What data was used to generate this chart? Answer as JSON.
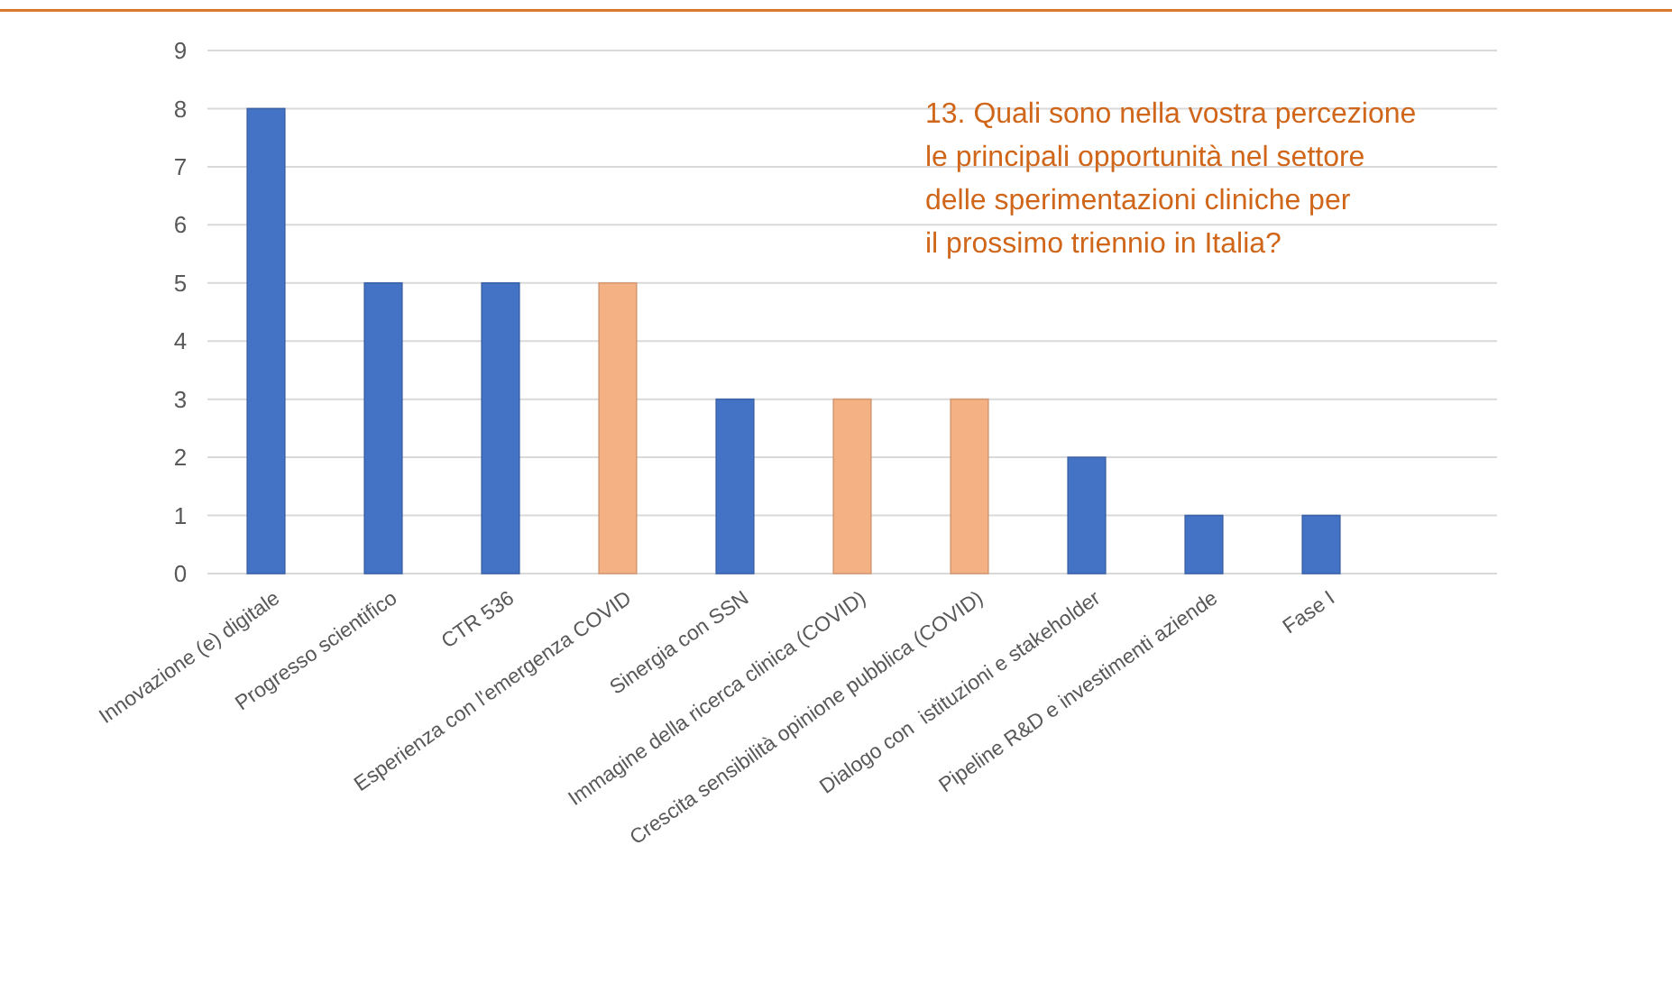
{
  "chart_data": {
    "type": "bar",
    "title": "13. Quali sono nella vostra percezione\nle principali opportunità nel settore\ndelle sperimentazioni cliniche per\nil prossimo triennio in Italia?",
    "categories": [
      "Innovazione (e) digitale",
      "Progresso scientifico",
      "CTR 536",
      "Esperienza con l'emergenza COVID",
      "Sinergia con SSN",
      "Immagine della ricerca clinica (COVID)",
      "Crescita sensibilità opinione pubblica (COVID)",
      "Dialogo con  istituzioni e stakeholder",
      "Pipeline R&D e investimenti aziende",
      "Fase I"
    ],
    "values": [
      8,
      5,
      5,
      5,
      3,
      3,
      3,
      2,
      1,
      1
    ],
    "colors": [
      "#4472c4",
      "#4472c4",
      "#4472c4",
      "#f4b183",
      "#4472c4",
      "#f4b183",
      "#f4b183",
      "#4472c4",
      "#4472c4",
      "#4472c4"
    ],
    "ylim": [
      0,
      9
    ],
    "yticks": [
      0,
      1,
      2,
      3,
      4,
      5,
      6,
      7,
      8,
      9
    ],
    "grid": "y"
  }
}
